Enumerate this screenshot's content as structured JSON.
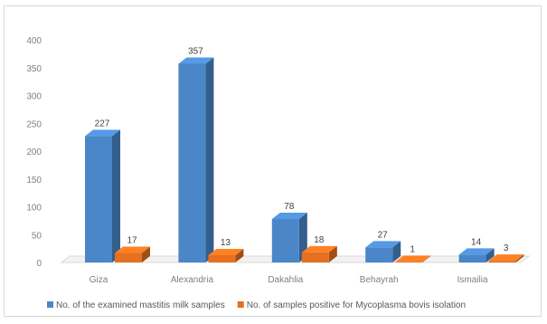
{
  "chart_data": {
    "type": "bar",
    "categories": [
      "Giza",
      "Alexandria",
      "Dakahlia",
      "Behayrah",
      "Ismailia"
    ],
    "series": [
      {
        "name": "No. of the examined mastitis milk samples",
        "values": [
          227,
          357,
          78,
          27,
          14
        ],
        "color": "#4a86c8"
      },
      {
        "name": "No. of samples positive for Mycoplasma bovis isolation",
        "values": [
          17,
          13,
          18,
          1,
          3
        ],
        "color": "#e5701f"
      }
    ],
    "data_labels": [
      [
        "227",
        "357",
        "78",
        "27",
        "14"
      ],
      [
        "17",
        "13",
        "18",
        "1",
        "3"
      ]
    ],
    "y_ticks": [
      0,
      50,
      100,
      150,
      200,
      250,
      300,
      350,
      400
    ],
    "ylim": [
      0,
      400
    ],
    "grid": false,
    "legend_position": "bottom",
    "style": "3d-column"
  }
}
